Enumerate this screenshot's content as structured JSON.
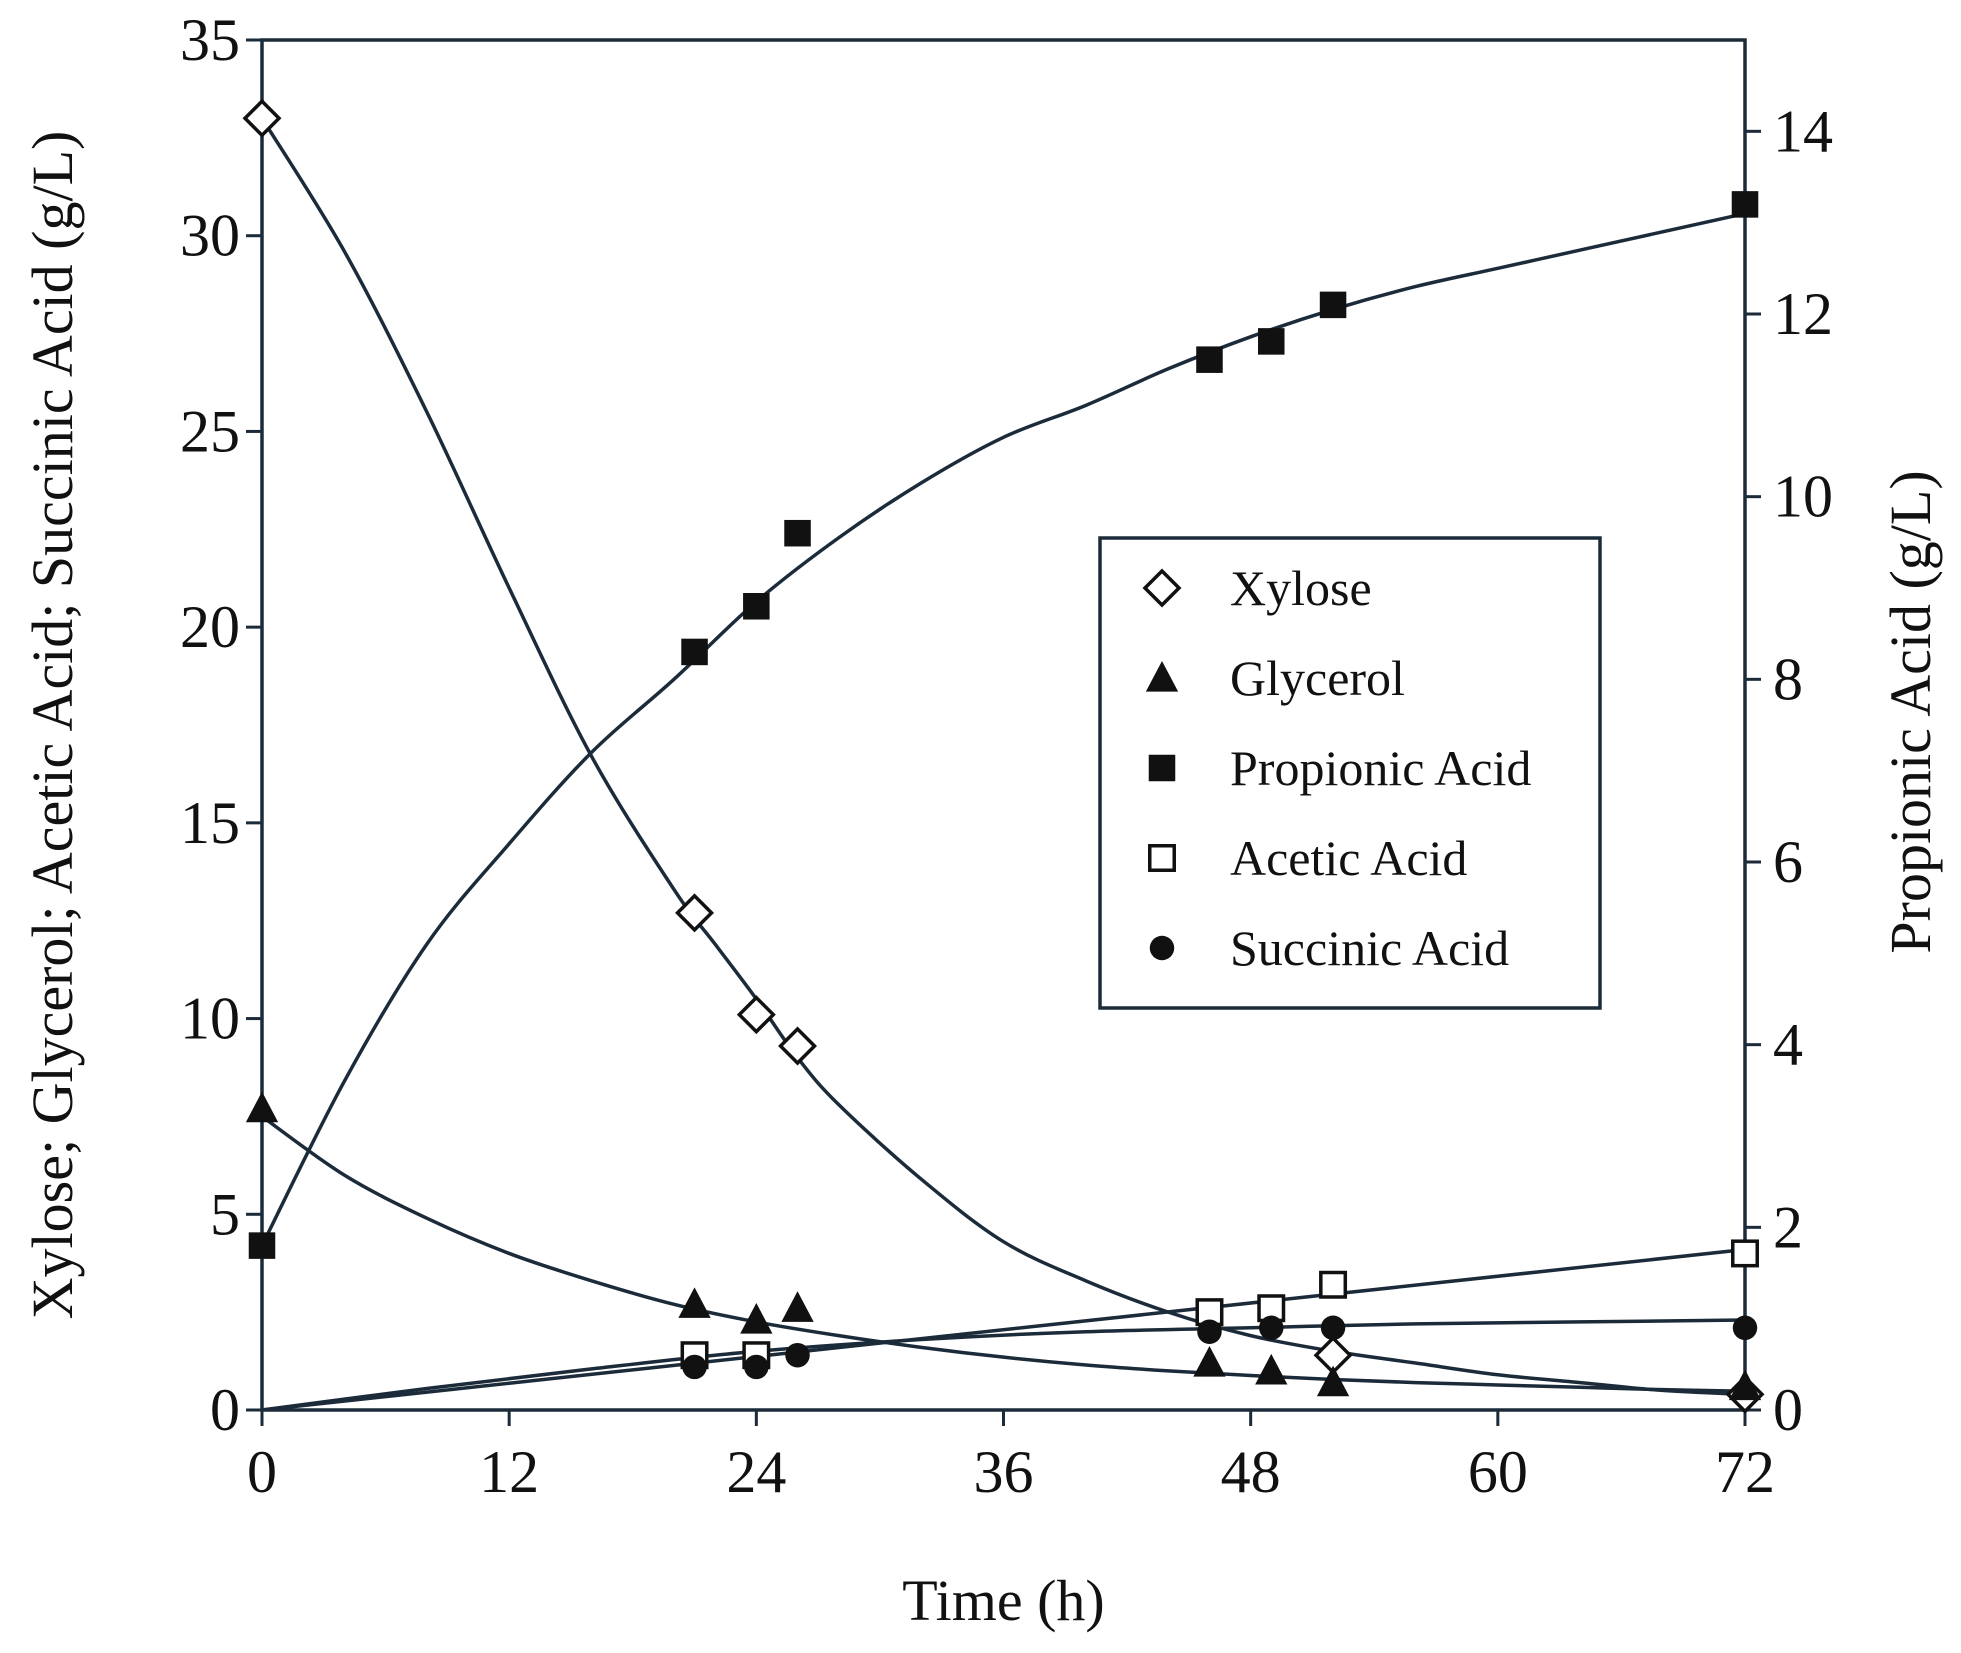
{
  "chart_data": {
    "type": "scatter",
    "xlabel": "Time (h)",
    "ylabel_left": "Xylose; Glycerol; Acetic Acid; Succinic Acid (g/L)",
    "ylabel_right": "Propionic Acid (g/L)",
    "xlim": [
      0,
      72
    ],
    "ylim_left": [
      0,
      35
    ],
    "ylim_right": [
      0,
      15
    ],
    "x_ticks": [
      0,
      12,
      24,
      36,
      48,
      60,
      72
    ],
    "y_left_ticks": [
      0,
      5,
      10,
      15,
      20,
      25,
      30,
      35
    ],
    "y_right_ticks": [
      0,
      2,
      4,
      6,
      8,
      10,
      12,
      14
    ],
    "grid": false,
    "legend_position": "center-right",
    "line_color": "#1c2b3a",
    "series": [
      {
        "name": "Xylose",
        "marker": "diamond-open",
        "axis": "left",
        "x": [
          0,
          21,
          24,
          26,
          52,
          72
        ],
        "y": [
          33.0,
          12.7,
          10.1,
          9.3,
          1.4,
          0.4
        ],
        "fit_x": [
          0,
          4,
          8,
          12,
          16,
          20,
          22,
          24,
          26,
          28,
          32,
          36,
          40,
          44,
          48,
          52,
          56,
          60,
          64,
          68,
          72
        ],
        "fit_y": [
          33.0,
          29.6,
          25.5,
          21.0,
          16.7,
          13.3,
          11.9,
          10.5,
          9.0,
          7.8,
          5.9,
          4.3,
          3.3,
          2.5,
          1.9,
          1.5,
          1.2,
          0.9,
          0.7,
          0.5,
          0.4
        ]
      },
      {
        "name": "Glycerol",
        "marker": "triangle-filled",
        "axis": "left",
        "x": [
          0,
          21,
          24,
          26,
          46,
          49,
          52,
          72
        ],
        "y": [
          7.7,
          2.7,
          2.3,
          2.6,
          1.2,
          1.0,
          0.7,
          0.6
        ],
        "fit_x": [
          0,
          4,
          8,
          12,
          16,
          20,
          24,
          28,
          32,
          36,
          40,
          44,
          48,
          52,
          56,
          60,
          64,
          68,
          72
        ],
        "fit_y": [
          7.5,
          6.0,
          4.9,
          4.0,
          3.3,
          2.7,
          2.25,
          1.9,
          1.6,
          1.35,
          1.15,
          1.0,
          0.88,
          0.78,
          0.7,
          0.64,
          0.58,
          0.52,
          0.48
        ]
      },
      {
        "name": "Propionic Acid",
        "marker": "square-filled",
        "axis": "right",
        "x": [
          0,
          21,
          24,
          26,
          46,
          49,
          52,
          72
        ],
        "y": [
          1.8,
          8.3,
          8.8,
          9.6,
          11.5,
          11.7,
          12.1,
          13.2
        ],
        "fit_x": [
          0,
          4,
          8,
          12,
          16,
          20,
          24,
          28,
          32,
          36,
          40,
          44,
          48,
          52,
          56,
          60,
          64,
          68,
          72
        ],
        "fit_y": [
          1.8,
          3.6,
          5.1,
          6.2,
          7.2,
          8.0,
          8.85,
          9.55,
          10.15,
          10.65,
          11.0,
          11.4,
          11.75,
          12.05,
          12.3,
          12.5,
          12.7,
          12.9,
          13.1
        ]
      },
      {
        "name": "Acetic Acid",
        "marker": "square-open",
        "axis": "left",
        "x": [
          21,
          24,
          46,
          49,
          52,
          72
        ],
        "y": [
          1.4,
          1.4,
          2.5,
          2.6,
          3.2,
          4.0
        ],
        "fit_x": [
          0,
          72
        ],
        "fit_y": [
          0.0,
          4.1
        ]
      },
      {
        "name": "Succinic Acid",
        "marker": "circle-filled",
        "axis": "left",
        "x": [
          21,
          24,
          26,
          46,
          49,
          52,
          72
        ],
        "y": [
          1.1,
          1.1,
          1.4,
          2.0,
          2.1,
          2.1,
          2.1
        ],
        "fit_x": [
          0,
          8,
          16,
          24,
          32,
          40,
          48,
          56,
          64,
          72
        ],
        "fit_y": [
          0.0,
          0.55,
          1.05,
          1.5,
          1.8,
          2.0,
          2.1,
          2.2,
          2.25,
          2.3
        ]
      }
    ]
  }
}
